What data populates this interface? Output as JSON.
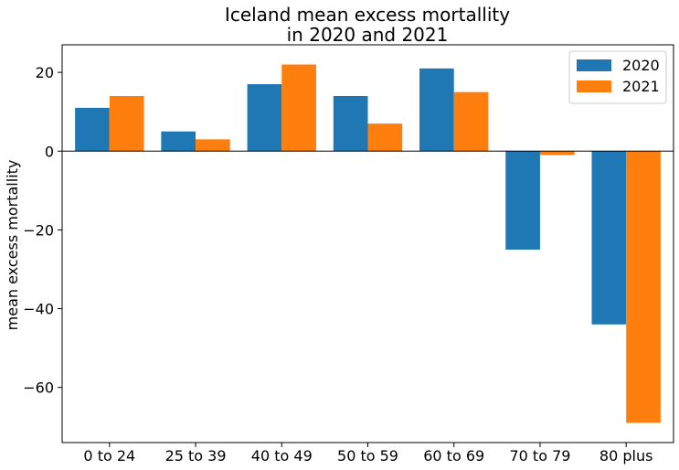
{
  "chart_data": {
    "type": "bar",
    "title_lines": [
      "Iceland mean excess mortallity",
      "in 2020 and 2021"
    ],
    "xlabel": "",
    "ylabel": "mean excess mortallity",
    "categories": [
      "0 to 24",
      "25 to 39",
      "40 to 49",
      "50 to 59",
      "60 to 69",
      "70 to 79",
      "80 plus"
    ],
    "series": [
      {
        "name": "2020",
        "color": "#1f77b4",
        "values": [
          11,
          5,
          17,
          14,
          21,
          -25,
          -44
        ]
      },
      {
        "name": "2021",
        "color": "#ff7f0e",
        "values": [
          14,
          3,
          22,
          7,
          15,
          -1,
          -69
        ]
      }
    ],
    "ylim": [
      -74,
      27
    ],
    "yticks": [
      20,
      0,
      -20,
      -40,
      -60
    ],
    "ytick_labels": [
      "20",
      "0",
      "−20",
      "−40",
      "−60"
    ],
    "zero_line": true,
    "grid": false,
    "legend_position": "top-right"
  }
}
